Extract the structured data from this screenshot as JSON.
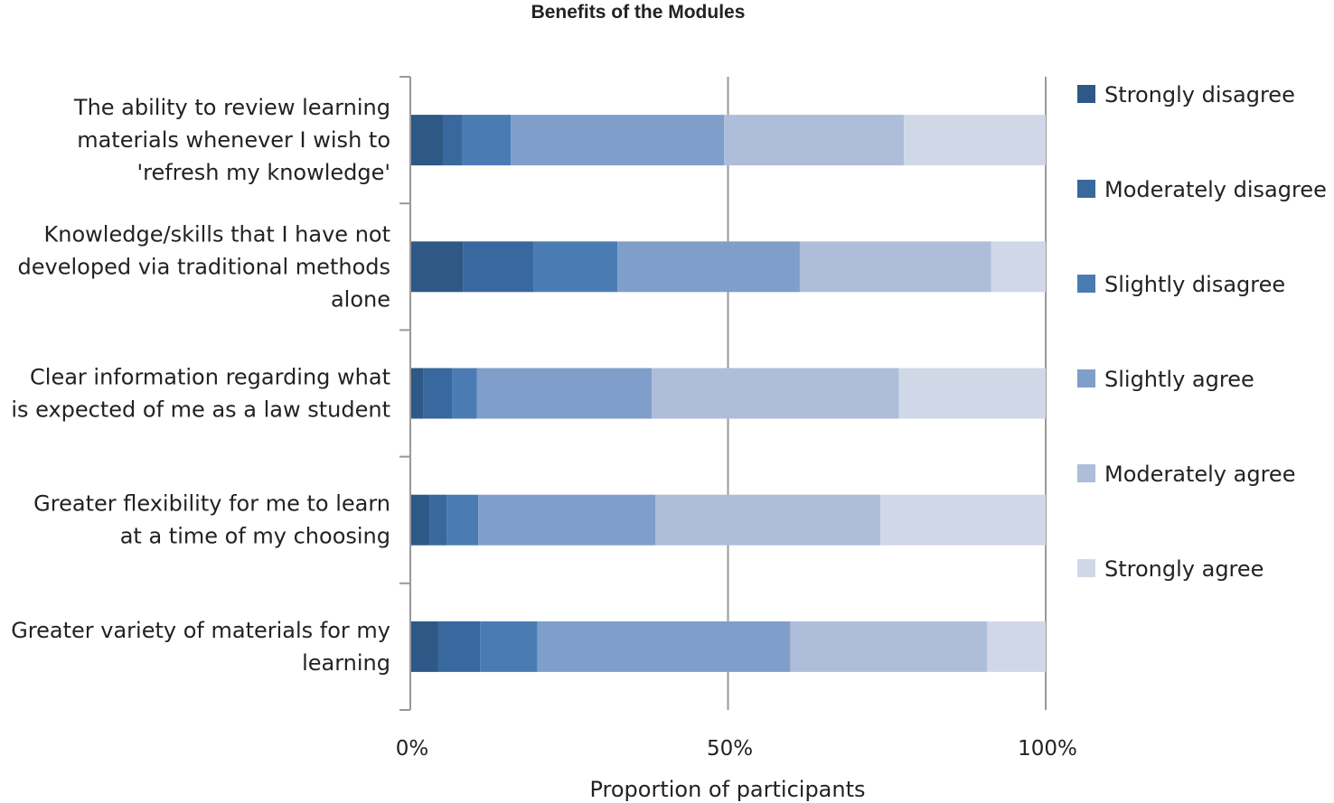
{
  "chart_data": {
    "type": "bar",
    "orientation": "horizontal",
    "stacked": true,
    "title": "Benefits of the Modules",
    "xlabel": "Proportion of participants",
    "ylabel": "",
    "xlim": [
      0,
      100
    ],
    "x_ticks": [
      "0%",
      "50%",
      "100%"
    ],
    "grid": true,
    "legend_position": "right",
    "categories": [
      "The ability to review learning materials whenever I wish to 'refresh my knowledge'",
      "Knowledge/skills that I have not developed via traditional methods alone",
      "Clear information regarding what is expected of me as a law student",
      "Greater flexibility for me to learn at a time of my choosing",
      "Greater variety of materials for my learning"
    ],
    "category_lines": [
      [
        "The ability to review learning",
        "materials whenever I wish to",
        "'refresh my knowledge'"
      ],
      [
        "Knowledge/skills that I have not",
        "developed via traditional methods",
        "alone"
      ],
      [
        "Clear information regarding what",
        "is expected of me as a law student"
      ],
      [
        "Greater flexibility for me to learn",
        "at a time of my choosing"
      ],
      [
        "Greater variety of materials for my",
        "learning"
      ]
    ],
    "series": [
      {
        "name": "Strongly disagree",
        "color": "#2e5886",
        "values": [
          5.2,
          8.3,
          2.0,
          3.0,
          4.4
        ]
      },
      {
        "name": "Moderately disagree",
        "color": "#38689e",
        "values": [
          3.0,
          11.1,
          4.6,
          2.8,
          6.6
        ]
      },
      {
        "name": "Slightly disagree",
        "color": "#4a7cb3",
        "values": [
          7.6,
          13.2,
          3.9,
          4.9,
          9.0
        ]
      },
      {
        "name": "Slightly agree",
        "color": "#7f9ec9",
        "values": [
          33.6,
          28.7,
          27.5,
          27.9,
          39.8
        ]
      },
      {
        "name": "Moderately agree",
        "color": "#adbdda",
        "values": [
          28.3,
          30.1,
          38.9,
          35.4,
          31.0
        ]
      },
      {
        "name": "Strongly agree",
        "color": "#d0d8e8",
        "values": [
          22.3,
          8.6,
          23.1,
          26.0,
          9.2
        ]
      }
    ]
  }
}
